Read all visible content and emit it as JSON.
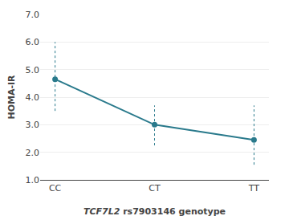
{
  "chart_data": {
    "type": "line",
    "categories": [
      "CC",
      "CT",
      "TT"
    ],
    "values": [
      4.65,
      3.0,
      2.45
    ],
    "error_upper": [
      6.0,
      3.7,
      3.7
    ],
    "error_lower": [
      3.5,
      2.25,
      1.55
    ],
    "color": "#2a7a8c",
    "marker": "circle",
    "line_style": "solid",
    "ylim": [
      1.0,
      7.0
    ],
    "yticks": [
      {
        "value": 1.0,
        "label": "1.0"
      },
      {
        "value": 2.0,
        "label": "2.0"
      },
      {
        "value": 3.0,
        "label": "3.0"
      },
      {
        "value": 4.0,
        "label": "4.0"
      },
      {
        "value": 5.0,
        "label": "5.0"
      },
      {
        "value": 6.0,
        "label": "6.0"
      },
      {
        "value": 7.0,
        "label": "7.0"
      }
    ],
    "ylabel": "HOMA-IR",
    "xlabel": "TCF7L2 rs7903146 genotype",
    "grid": true
  }
}
